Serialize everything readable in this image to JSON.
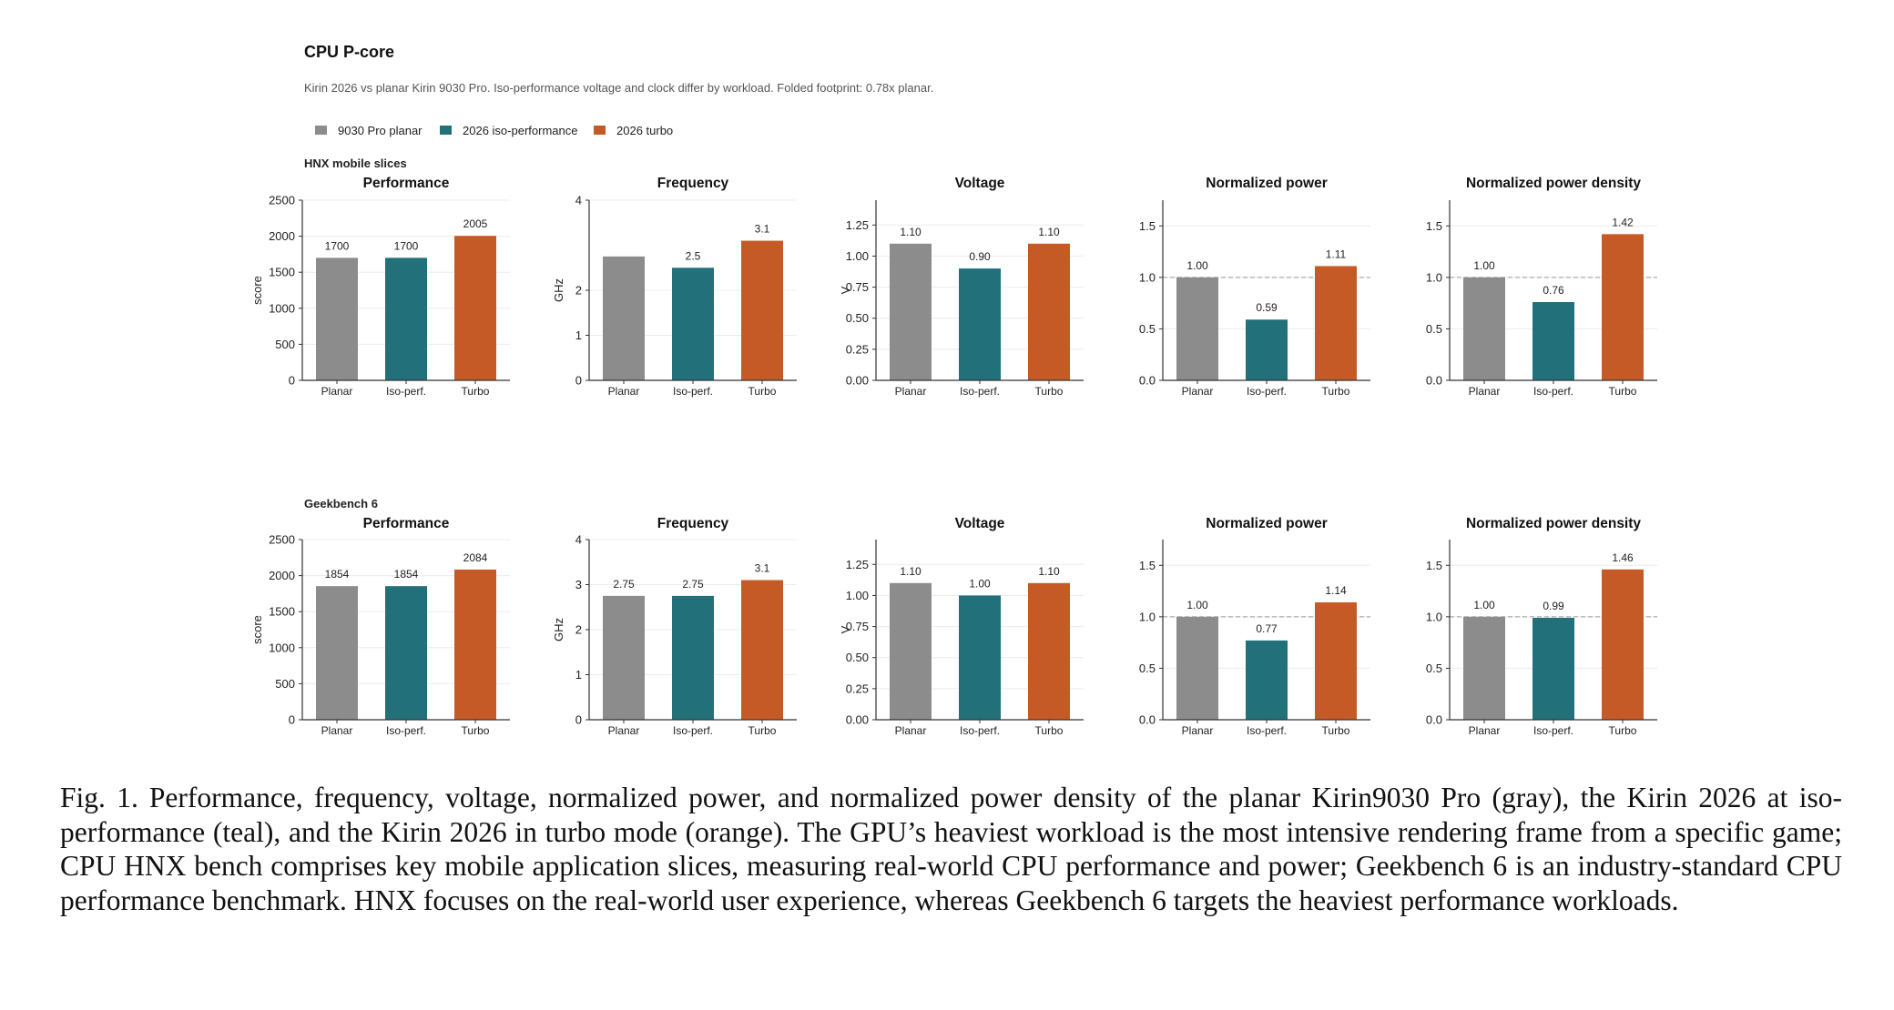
{
  "figure": {
    "title": "CPU P-core",
    "subtitle": "Kirin 2026 vs planar Kirin 9030 Pro. Iso-performance voltage and clock differ by workload. Folded footprint: 0.78x planar.",
    "legend": [
      {
        "label": "9030 Pro planar",
        "color": "#8c8c8c"
      },
      {
        "label": "2026 iso-performance",
        "color": "#21707a"
      },
      {
        "label": "2026 turbo",
        "color": "#c65a26"
      }
    ]
  },
  "chart_data": [
    {
      "group": "HNX mobile slices",
      "panels": [
        {
          "type": "bar",
          "title": "Performance",
          "ylabel": "score",
          "categories": [
            "Planar",
            "Iso-perf.",
            "Turbo"
          ],
          "values": [
            1700,
            1700,
            2005
          ],
          "value_labels": [
            "1700",
            "1700",
            "2005"
          ],
          "ylim": [
            0,
            2500
          ],
          "yticks": [
            "0",
            "500",
            "1000",
            "1500",
            "2000",
            "2500"
          ],
          "ytick_values": [
            0,
            500,
            1000,
            1500,
            2000,
            2500
          ],
          "reference_line": null
        },
        {
          "type": "bar",
          "title": "Frequency",
          "ylabel": "GHz",
          "categories": [
            "Planar",
            "Iso-perf.",
            "Turbo"
          ],
          "values": [
            2.75,
            2.5,
            3.1
          ],
          "value_labels": [
            "",
            "2.5",
            "3.1"
          ],
          "ylim": [
            0,
            4
          ],
          "yticks": [
            "0",
            "1",
            "2",
            "4"
          ],
          "ytick_values": [
            0,
            1,
            2,
            4
          ],
          "reference_line": null
        },
        {
          "type": "bar",
          "title": "Voltage",
          "ylabel": "V",
          "categories": [
            "Planar",
            "Iso-perf.",
            "Turbo"
          ],
          "values": [
            1.1,
            0.9,
            1.1
          ],
          "value_labels": [
            "1.10",
            "0.90",
            "1.10"
          ],
          "ylim": [
            0,
            1.45
          ],
          "yticks": [
            "0.00",
            "0.25",
            "0.50",
            "0.75",
            "1.00",
            "1.25"
          ],
          "ytick_values": [
            0,
            0.25,
            0.5,
            0.75,
            1.0,
            1.25
          ],
          "reference_line": null
        },
        {
          "type": "bar",
          "title": "Normalized power",
          "ylabel": "",
          "categories": [
            "Planar",
            "Iso-perf.",
            "Turbo"
          ],
          "values": [
            1.0,
            0.59,
            1.11
          ],
          "value_labels": [
            "1.00",
            "0.59",
            "1.11"
          ],
          "ylim": [
            0,
            1.75
          ],
          "yticks": [
            "0.0",
            "0.5",
            "1.0",
            "1.5"
          ],
          "ytick_values": [
            0,
            0.5,
            1.0,
            1.5
          ],
          "reference_line": 1.0
        },
        {
          "type": "bar",
          "title": "Normalized power density",
          "ylabel": "",
          "categories": [
            "Planar",
            "Iso-perf.",
            "Turbo"
          ],
          "values": [
            1.0,
            0.76,
            1.42
          ],
          "value_labels": [
            "1.00",
            "0.76",
            "1.42"
          ],
          "ylim": [
            0,
            1.75
          ],
          "yticks": [
            "0.0",
            "0.5",
            "1.0",
            "1.5"
          ],
          "ytick_values": [
            0,
            0.5,
            1.0,
            1.5
          ],
          "reference_line": 1.0
        }
      ]
    },
    {
      "group": "Geekbench 6",
      "panels": [
        {
          "type": "bar",
          "title": "Performance",
          "ylabel": "score",
          "categories": [
            "Planar",
            "Iso-perf.",
            "Turbo"
          ],
          "values": [
            1854,
            1854,
            2084
          ],
          "value_labels": [
            "1854",
            "1854",
            "2084"
          ],
          "ylim": [
            0,
            2500
          ],
          "yticks": [
            "0",
            "500",
            "1000",
            "1500",
            "2000",
            "2500"
          ],
          "ytick_values": [
            0,
            500,
            1000,
            1500,
            2000,
            2500
          ],
          "reference_line": null
        },
        {
          "type": "bar",
          "title": "Frequency",
          "ylabel": "GHz",
          "categories": [
            "Planar",
            "Iso-perf.",
            "Turbo"
          ],
          "values": [
            2.75,
            2.75,
            3.1
          ],
          "value_labels": [
            "2.75",
            "2.75",
            "3.1"
          ],
          "ylim": [
            0,
            4
          ],
          "yticks": [
            "0",
            "1",
            "2",
            "3",
            "4"
          ],
          "ytick_values": [
            0,
            1,
            2,
            3,
            4
          ],
          "reference_line": null
        },
        {
          "type": "bar",
          "title": "Voltage",
          "ylabel": "V",
          "categories": [
            "Planar",
            "Iso-perf.",
            "Turbo"
          ],
          "values": [
            1.1,
            1.0,
            1.1
          ],
          "value_labels": [
            "1.10",
            "1.00",
            "1.10"
          ],
          "ylim": [
            0,
            1.45
          ],
          "yticks": [
            "0.00",
            "0.25",
            "0.50",
            "0.75",
            "1.00",
            "1.25"
          ],
          "ytick_values": [
            0,
            0.25,
            0.5,
            0.75,
            1.0,
            1.25
          ],
          "reference_line": null
        },
        {
          "type": "bar",
          "title": "Normalized power",
          "ylabel": "",
          "categories": [
            "Planar",
            "Iso-perf.",
            "Turbo"
          ],
          "values": [
            1.0,
            0.77,
            1.14
          ],
          "value_labels": [
            "1.00",
            "0.77",
            "1.14"
          ],
          "ylim": [
            0,
            1.75
          ],
          "yticks": [
            "0.0",
            "0.5",
            "1.0",
            "1.5"
          ],
          "ytick_values": [
            0,
            0.5,
            1.0,
            1.5
          ],
          "reference_line": 1.0
        },
        {
          "type": "bar",
          "title": "Normalized power density",
          "ylabel": "",
          "categories": [
            "Planar",
            "Iso-perf.",
            "Turbo"
          ],
          "values": [
            1.0,
            0.99,
            1.46
          ],
          "value_labels": [
            "1.00",
            "0.99",
            "1.46"
          ],
          "ylim": [
            0,
            1.75
          ],
          "yticks": [
            "0.0",
            "0.5",
            "1.0",
            "1.5"
          ],
          "ytick_values": [
            0,
            0.5,
            1.0,
            1.5
          ],
          "reference_line": 1.0
        }
      ]
    }
  ],
  "caption": {
    "label": "Fig. 1.",
    "text": "Performance, frequency, voltage, normalized power, and normalized power density of the planar Kirin9030 Pro (gray), the Kirin 2026 at iso-performance (teal), and the Kirin 2026 in turbo mode (orange). The GPU’s heaviest workload is the most intensive rendering frame from a specific game; CPU HNX bench comprises key mobile application slices, measuring real-world CPU performance and power; Geekbench 6 is an industry-standard CPU performance benchmark. HNX focuses on the real-world user experience, whereas Geekbench 6 targets the heaviest performance workloads."
  }
}
